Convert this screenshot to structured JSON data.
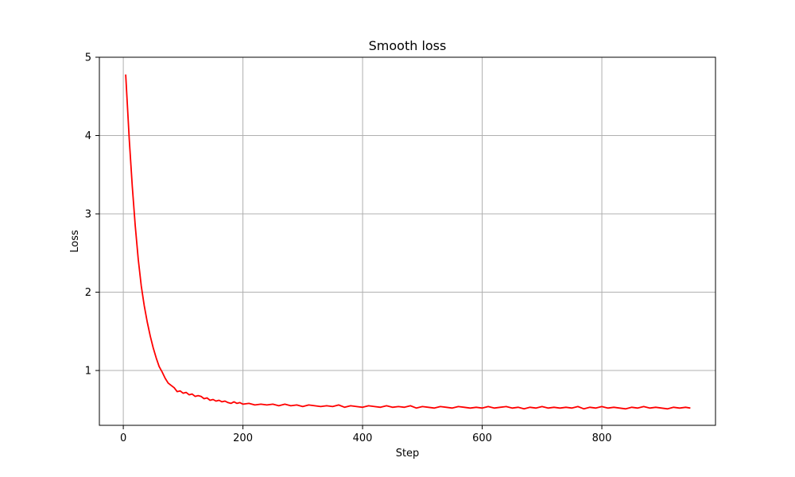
{
  "chart_data": {
    "type": "line",
    "title": "Smooth loss",
    "xlabel": "Step",
    "ylabel": "Loss",
    "xlim": [
      -40,
      990
    ],
    "ylim": [
      0.3,
      5
    ],
    "xticks": [
      0,
      200,
      400,
      600,
      800
    ],
    "yticks": [
      1,
      2,
      3,
      4,
      5
    ],
    "grid": true,
    "colors": {
      "series": "#ff0000",
      "grid": "#b0b0b0"
    },
    "series": [
      {
        "x": [
          4,
          10,
          15,
          20,
          25,
          30,
          35,
          40,
          45,
          50,
          55,
          60,
          65,
          70,
          75,
          80,
          85,
          90,
          95,
          100,
          105,
          110,
          115,
          120,
          125,
          130,
          135,
          140,
          145,
          150,
          155,
          160,
          165,
          170,
          175,
          180,
          185,
          190,
          195,
          200,
          210,
          220,
          230,
          240,
          250,
          260,
          270,
          280,
          290,
          300,
          310,
          320,
          330,
          340,
          350,
          360,
          370,
          380,
          390,
          400,
          410,
          420,
          430,
          440,
          450,
          460,
          470,
          480,
          490,
          500,
          510,
          520,
          530,
          540,
          550,
          560,
          570,
          580,
          590,
          600,
          610,
          620,
          630,
          640,
          650,
          660,
          670,
          680,
          690,
          700,
          710,
          720,
          730,
          740,
          750,
          760,
          770,
          780,
          790,
          800,
          810,
          820,
          830,
          840,
          850,
          860,
          870,
          880,
          890,
          900,
          910,
          920,
          930,
          940,
          948
        ],
        "y": [
          4.78,
          3.95,
          3.35,
          2.85,
          2.42,
          2.08,
          1.83,
          1.62,
          1.44,
          1.29,
          1.16,
          1.05,
          0.98,
          0.9,
          0.84,
          0.81,
          0.78,
          0.73,
          0.74,
          0.71,
          0.72,
          0.69,
          0.7,
          0.67,
          0.68,
          0.67,
          0.64,
          0.65,
          0.62,
          0.63,
          0.61,
          0.62,
          0.6,
          0.61,
          0.59,
          0.58,
          0.6,
          0.58,
          0.59,
          0.57,
          0.58,
          0.56,
          0.57,
          0.56,
          0.57,
          0.55,
          0.57,
          0.55,
          0.56,
          0.54,
          0.56,
          0.55,
          0.54,
          0.55,
          0.54,
          0.56,
          0.53,
          0.55,
          0.54,
          0.53,
          0.55,
          0.54,
          0.53,
          0.55,
          0.53,
          0.54,
          0.53,
          0.55,
          0.52,
          0.54,
          0.53,
          0.52,
          0.54,
          0.53,
          0.52,
          0.54,
          0.53,
          0.52,
          0.53,
          0.52,
          0.54,
          0.52,
          0.53,
          0.54,
          0.52,
          0.53,
          0.51,
          0.53,
          0.52,
          0.54,
          0.52,
          0.53,
          0.52,
          0.53,
          0.52,
          0.54,
          0.51,
          0.53,
          0.52,
          0.54,
          0.52,
          0.53,
          0.52,
          0.51,
          0.53,
          0.52,
          0.54,
          0.52,
          0.53,
          0.52,
          0.51,
          0.53,
          0.52,
          0.53,
          0.52
        ]
      }
    ]
  }
}
